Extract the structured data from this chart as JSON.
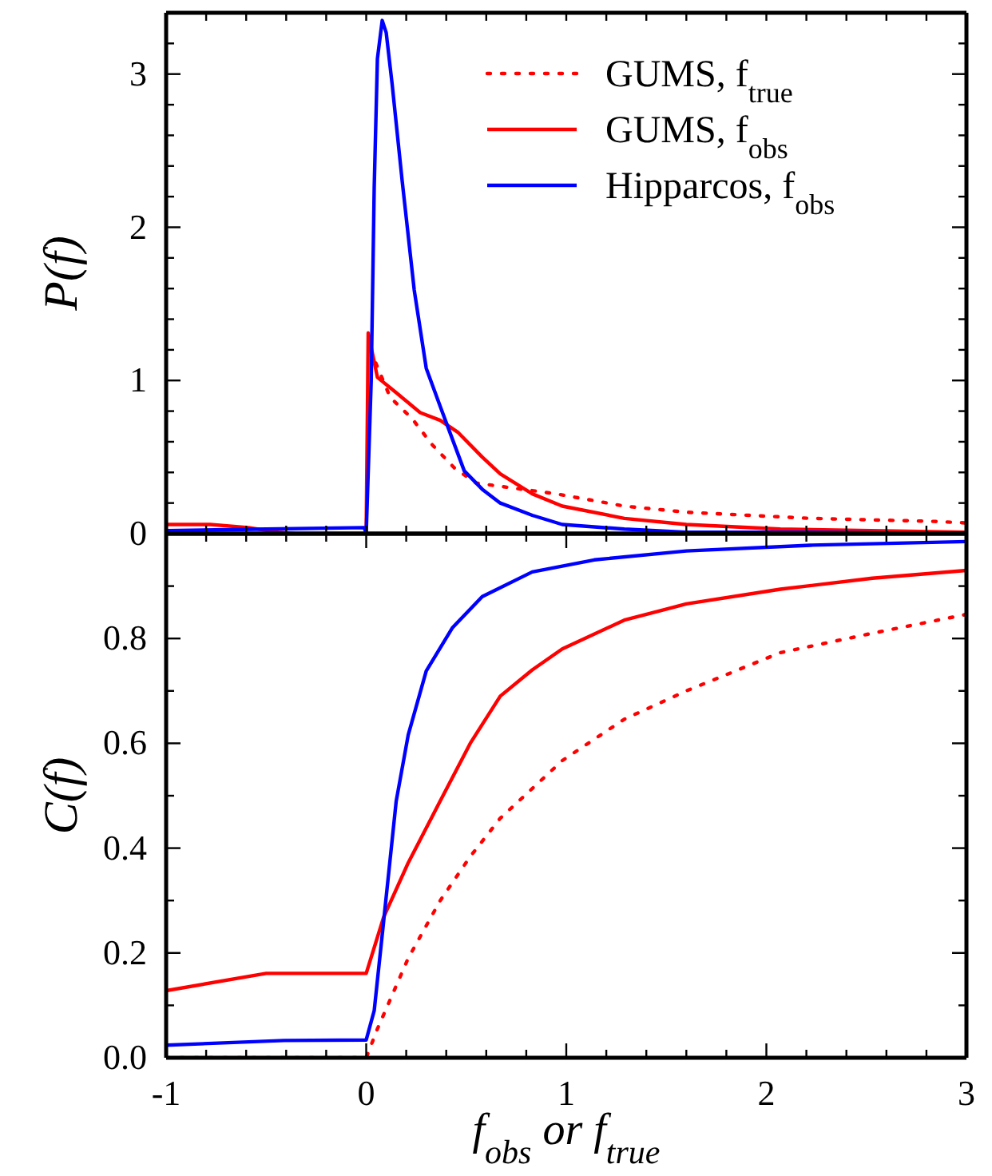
{
  "chart_data": [
    {
      "type": "line",
      "ylabel": "P(f)",
      "legend": "top right",
      "tick_labels": "y",
      "xlim": [
        -1,
        3
      ],
      "ylim": [
        0,
        3.4
      ],
      "xticks": [
        {
          "value": -1,
          "label": null
        },
        {
          "value": -0.8,
          "label": null
        },
        {
          "value": -0.6,
          "label": null
        },
        {
          "value": -0.4,
          "label": null
        },
        {
          "value": -0.2,
          "label": null
        },
        {
          "value": 0,
          "label": null
        },
        {
          "value": 0.2,
          "label": null
        },
        {
          "value": 0.4,
          "label": null
        },
        {
          "value": 0.6,
          "label": null
        },
        {
          "value": 0.8,
          "label": null
        },
        {
          "value": 1,
          "label": null
        },
        {
          "value": 1.2,
          "label": null
        },
        {
          "value": 1.4,
          "label": null
        },
        {
          "value": 1.6,
          "label": null
        },
        {
          "value": 1.8,
          "label": null
        },
        {
          "value": 2,
          "label": null
        },
        {
          "value": 2.2,
          "label": null
        },
        {
          "value": 2.4,
          "label": null
        },
        {
          "value": 2.6,
          "label": null
        },
        {
          "value": 2.8,
          "label": null
        },
        {
          "value": 3,
          "label": null
        }
      ],
      "yticks": [
        0,
        {
          "value": 0.2,
          "label": null
        },
        {
          "value": 0.4,
          "label": null
        },
        {
          "value": 0.6,
          "label": null
        },
        {
          "value": 0.8,
          "label": null
        },
        1,
        {
          "value": 1.2,
          "label": null
        },
        {
          "value": 1.4,
          "label": null
        },
        {
          "value": 1.6,
          "label": null
        },
        {
          "value": 1.8,
          "label": null
        },
        2,
        {
          "value": 2.2,
          "label": null
        },
        {
          "value": 2.4,
          "label": null
        },
        {
          "value": 2.6,
          "label": null
        },
        {
          "value": 2.8,
          "label": null
        },
        3,
        {
          "value": 3.2,
          "label": null
        }
      ],
      "series": [
        {
          "name": "GUMS, f$_{true}$",
          "color": "#ff0000",
          "line_style": "dotted",
          "x": [
            0.02,
            0.12,
            0.23,
            0.33,
            0.44,
            0.55,
            0.95,
            1.29,
            1.6,
            2.22,
            2.84,
            3
          ],
          "values": [
            1.2,
            0.89,
            0.75,
            0.58,
            0.43,
            0.33,
            0.26,
            0.18,
            0.14,
            0.1,
            0.08,
            0.07
          ]
        },
        {
          "name": "GUMS, f$_{obs}$",
          "color": "#ff0000",
          "line_style": "solid",
          "x": [
            -1,
            -0.78,
            -0.59,
            -0.44,
            -0.35,
            0,
            0.01,
            0.056,
            0.15,
            0.27,
            0.37,
            0.46,
            0.58,
            0.67,
            0.83,
            0.98,
            1.29,
            1.6,
            2.07,
            3
          ],
          "values": [
            0.06,
            0.06,
            0.04,
            0.01,
            0,
            0,
            1.31,
            1.02,
            0.92,
            0.79,
            0.74,
            0.66,
            0.5,
            0.39,
            0.26,
            0.18,
            0.1,
            0.06,
            0.03,
            0.01
          ]
        },
        {
          "name": "Hipparcos, f$_{obs}$",
          "color": "#0000ff",
          "line_style": "solid",
          "x": [
            -1,
            -0.5,
            -0.01,
            0,
            0.025,
            0.04,
            0.056,
            0.08,
            0.1,
            0.13,
            0.18,
            0.24,
            0.3,
            0.37,
            0.43,
            0.49,
            0.58,
            0.67,
            0.83,
            0.98,
            1.29,
            1.6,
            2.22,
            3
          ],
          "values": [
            0.02,
            0.03,
            0.04,
            0,
            1,
            2.26,
            3.1,
            3.35,
            3.27,
            2.93,
            2.3,
            1.59,
            1.08,
            0.83,
            0.62,
            0.41,
            0.29,
            0.2,
            0.12,
            0.06,
            0.03,
            0.01,
            0.01,
            0
          ]
        }
      ]
    },
    {
      "type": "line",
      "ylabel": "C(f)",
      "xlabel": "f$_{obs}$ or f$_{true}$",
      "xlim": [
        -1,
        3
      ],
      "ylim": [
        0,
        1
      ],
      "xticks": [
        -1,
        {
          "value": -0.8,
          "label": null
        },
        {
          "value": -0.6,
          "label": null
        },
        {
          "value": -0.4,
          "label": null
        },
        {
          "value": -0.2,
          "label": null
        },
        0,
        {
          "value": 0.2,
          "label": null
        },
        {
          "value": 0.4,
          "label": null
        },
        {
          "value": 0.6,
          "label": null
        },
        {
          "value": 0.8,
          "label": null
        },
        1,
        {
          "value": 1.2,
          "label": null
        },
        {
          "value": 1.4,
          "label": null
        },
        {
          "value": 1.6,
          "label": null
        },
        {
          "value": 1.8,
          "label": null
        },
        2,
        {
          "value": 2.2,
          "label": null
        },
        {
          "value": 2.4,
          "label": null
        },
        {
          "value": 2.6,
          "label": null
        },
        {
          "value": 2.8,
          "label": null
        },
        3
      ],
      "yticks": [
        {
          "value": 0,
          "label": "0.0"
        },
        {
          "value": 0.1,
          "label": null
        },
        0.2,
        {
          "value": 0.3,
          "label": null
        },
        0.4,
        {
          "value": 0.5,
          "label": null
        },
        0.6,
        {
          "value": 0.7,
          "label": null
        },
        0.8,
        {
          "value": 0.9,
          "label": null
        },
        {
          "value": 1,
          "label": null
        }
      ],
      "series": [
        {
          "color": "#ff0000",
          "line_style": "dotted",
          "x": [
            -1,
            0,
            0.056,
            0.21,
            0.37,
            0.52,
            0.67,
            0.98,
            1.29,
            1.6,
            2.07,
            2.53,
            3
          ],
          "values": [
            0,
            0,
            0.055,
            0.19,
            0.3,
            0.384,
            0.457,
            0.567,
            0.646,
            0.7,
            0.773,
            0.81,
            0.846
          ]
        },
        {
          "color": "#ff0000",
          "line_style": "solid",
          "x": [
            -1,
            -0.5,
            0,
            0.087,
            0.21,
            0.37,
            0.52,
            0.67,
            0.83,
            0.98,
            1.29,
            1.6,
            2.07,
            2.53,
            3
          ],
          "values": [
            0.128,
            0.161,
            0.161,
            0.268,
            0.372,
            0.49,
            0.6,
            0.69,
            0.74,
            0.78,
            0.835,
            0.866,
            0.894,
            0.915,
            0.93
          ]
        },
        {
          "color": "#0000ff",
          "line_style": "solid",
          "x": [
            -1,
            -0.41,
            0,
            0.04,
            0.087,
            0.15,
            0.21,
            0.3,
            0.43,
            0.58,
            0.83,
            1.14,
            1.6,
            2.22,
            3
          ],
          "values": [
            0.024,
            0.033,
            0.034,
            0.09,
            0.26,
            0.49,
            0.616,
            0.738,
            0.82,
            0.88,
            0.927,
            0.95,
            0.967,
            0.978,
            0.985
          ]
        }
      ]
    }
  ]
}
